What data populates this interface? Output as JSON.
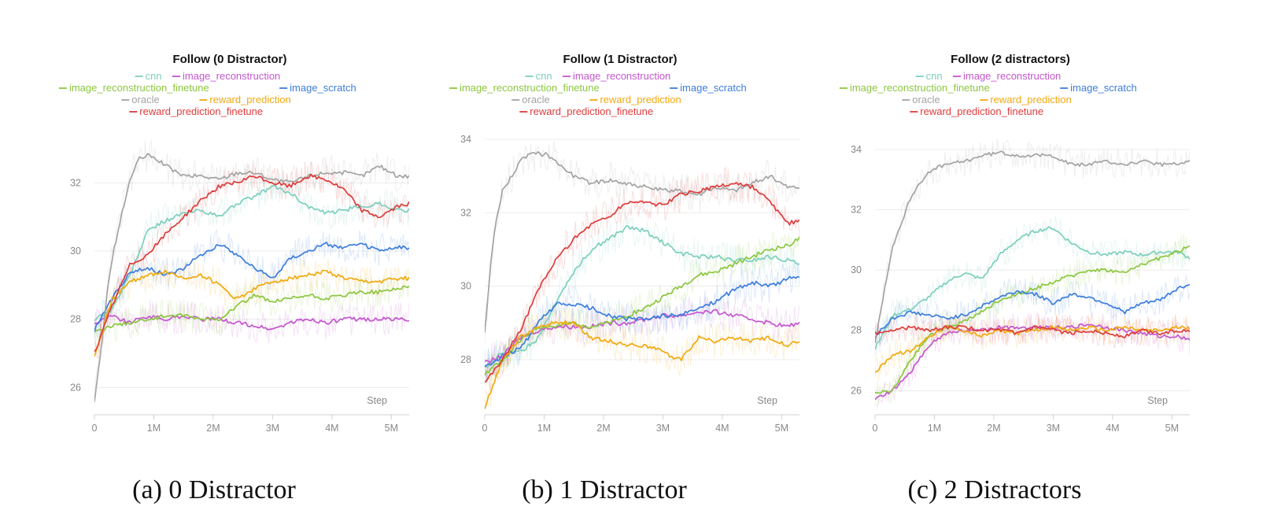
{
  "colors": {
    "cnn": "#7ccfbd",
    "image_reconstruction": "#c456cf",
    "image_reconstruction_finetune": "#8cc63f",
    "image_scratch": "#3d7ddc",
    "oracle": "#a3a3a3",
    "reward_prediction": "#f0a90f",
    "reward_prediction_finetune": "#dd3b3b"
  },
  "chart_data": [
    {
      "type": "line",
      "title": "Follow (0 Distractor)",
      "caption": "(a) 0 Distractor",
      "xlabel": "Step",
      "ylabel": "",
      "xlim": [
        0,
        5.3
      ],
      "ylim": [
        25.2,
        33.6
      ],
      "yticks": [
        26,
        28,
        30,
        32
      ],
      "xticks": [
        0,
        1,
        2,
        3,
        4,
        5
      ],
      "xtick_labels": [
        "0",
        "1M",
        "2M",
        "3M",
        "4M",
        "5M"
      ],
      "series": [
        {
          "name": "cnn",
          "key": "cnn",
          "x": [
            0,
            0.3,
            0.6,
            0.9,
            1.2,
            1.5,
            1.8,
            2.1,
            2.4,
            2.7,
            3.0,
            3.3,
            3.6,
            3.9,
            4.2,
            4.5,
            4.8,
            5.1,
            5.3
          ],
          "y": [
            28.0,
            28.3,
            29.3,
            30.6,
            30.9,
            31.1,
            31.2,
            31.0,
            31.4,
            31.6,
            31.9,
            31.7,
            31.3,
            31.1,
            31.2,
            31.3,
            31.4,
            31.2,
            31.2
          ]
        },
        {
          "name": "image_reconstruction",
          "key": "image_reconstruction",
          "x": [
            0,
            0.3,
            0.6,
            0.9,
            1.2,
            1.5,
            1.8,
            2.1,
            2.4,
            2.7,
            3.0,
            3.3,
            3.6,
            3.9,
            4.2,
            4.5,
            4.8,
            5.1,
            5.3
          ],
          "y": [
            27.9,
            28.1,
            27.9,
            28.1,
            28.0,
            28.1,
            28.0,
            28.0,
            27.9,
            27.8,
            27.7,
            27.9,
            28.0,
            27.9,
            28.0,
            28.0,
            28.0,
            28.0,
            28.0
          ]
        },
        {
          "name": "image_reconstruction_finetune",
          "key": "image_reconstruction_finetune",
          "x": [
            0,
            0.3,
            0.6,
            0.9,
            1.2,
            1.5,
            1.8,
            2.1,
            2.4,
            2.7,
            3.0,
            3.3,
            3.6,
            3.9,
            4.2,
            4.5,
            4.8,
            5.1,
            5.3
          ],
          "y": [
            27.6,
            27.8,
            27.9,
            28.0,
            28.1,
            28.1,
            28.0,
            28.0,
            28.4,
            28.7,
            28.5,
            28.6,
            28.7,
            28.6,
            28.7,
            28.8,
            28.8,
            28.9,
            29.0
          ]
        },
        {
          "name": "image_scratch",
          "key": "image_scratch",
          "x": [
            0,
            0.3,
            0.6,
            0.9,
            1.2,
            1.5,
            1.8,
            2.1,
            2.4,
            2.7,
            3.0,
            3.3,
            3.6,
            3.9,
            4.2,
            4.5,
            4.8,
            5.1,
            5.3
          ],
          "y": [
            27.7,
            28.6,
            29.4,
            29.5,
            29.3,
            29.5,
            29.9,
            30.2,
            29.9,
            29.5,
            29.2,
            29.8,
            30.0,
            30.2,
            30.1,
            30.2,
            30.0,
            30.1,
            30.1
          ]
        },
        {
          "name": "oracle",
          "key": "oracle",
          "x": [
            0,
            0.1,
            0.2,
            0.3,
            0.45,
            0.6,
            0.75,
            0.9,
            1.05,
            1.2,
            1.5,
            1.8,
            2.1,
            2.4,
            2.7,
            3.0,
            3.3,
            3.6,
            3.9,
            4.2,
            4.5,
            4.8,
            5.1,
            5.3
          ],
          "y": [
            25.6,
            26.9,
            28.6,
            29.8,
            31.0,
            32.1,
            32.7,
            32.8,
            32.7,
            32.5,
            32.2,
            32.2,
            32.1,
            32.3,
            32.3,
            32.1,
            32.0,
            32.2,
            32.3,
            32.3,
            32.2,
            32.5,
            32.2,
            32.2
          ]
        },
        {
          "name": "reward_prediction",
          "key": "reward_prediction",
          "x": [
            0,
            0.3,
            0.6,
            0.9,
            1.2,
            1.5,
            1.8,
            2.1,
            2.4,
            2.7,
            3.0,
            3.3,
            3.6,
            3.9,
            4.2,
            4.5,
            4.8,
            5.1,
            5.3
          ],
          "y": [
            26.9,
            28.6,
            29.1,
            29.3,
            29.4,
            29.2,
            29.3,
            29.0,
            28.6,
            28.9,
            29.1,
            29.2,
            29.3,
            29.4,
            29.2,
            29.1,
            29.1,
            29.2,
            29.2
          ]
        },
        {
          "name": "reward_prediction_finetune",
          "key": "reward_prediction_finetune",
          "x": [
            0,
            0.3,
            0.6,
            0.9,
            1.2,
            1.5,
            1.8,
            2.1,
            2.4,
            2.7,
            3.0,
            3.3,
            3.6,
            3.9,
            4.2,
            4.5,
            4.8,
            5.1,
            5.3
          ],
          "y": [
            27.0,
            28.4,
            29.6,
            29.9,
            30.5,
            31.0,
            31.5,
            31.9,
            32.0,
            32.2,
            32.0,
            31.9,
            32.2,
            32.1,
            31.8,
            31.2,
            31.0,
            31.3,
            31.4
          ]
        }
      ]
    },
    {
      "type": "line",
      "title": "Follow (1 Distractor)",
      "caption": "(b) 1 Distractor",
      "xlabel": "Step",
      "ylabel": "",
      "xlim": [
        0,
        5.3
      ],
      "ylim": [
        26.5,
        34.3
      ],
      "yticks": [
        28,
        30,
        32,
        34
      ],
      "xticks": [
        0,
        1,
        2,
        3,
        4,
        5
      ],
      "xtick_labels": [
        "0",
        "1M",
        "2M",
        "3M",
        "4M",
        "5M"
      ],
      "series": [
        {
          "name": "cnn",
          "key": "cnn",
          "x": [
            0,
            0.3,
            0.6,
            0.9,
            1.2,
            1.5,
            1.8,
            2.1,
            2.4,
            2.7,
            3.0,
            3.3,
            3.6,
            3.9,
            4.2,
            4.5,
            4.8,
            5.1,
            5.3
          ],
          "y": [
            27.8,
            28.2,
            28.2,
            28.6,
            29.6,
            30.4,
            31.0,
            31.3,
            31.6,
            31.5,
            31.2,
            30.9,
            30.8,
            30.8,
            30.7,
            30.7,
            30.8,
            30.7,
            30.6
          ]
        },
        {
          "name": "image_reconstruction",
          "key": "image_reconstruction",
          "x": [
            0,
            0.3,
            0.6,
            0.9,
            1.2,
            1.5,
            1.8,
            2.1,
            2.4,
            2.7,
            3.0,
            3.3,
            3.6,
            3.9,
            4.2,
            4.5,
            4.8,
            5.1,
            5.3
          ],
          "y": [
            27.9,
            28.1,
            28.6,
            28.8,
            28.9,
            28.9,
            28.9,
            29.0,
            29.0,
            29.1,
            29.2,
            29.2,
            29.3,
            29.3,
            29.2,
            29.1,
            29.0,
            28.9,
            29.0
          ]
        },
        {
          "name": "image_reconstruction_finetune",
          "key": "image_reconstruction_finetune",
          "x": [
            0,
            0.3,
            0.6,
            0.9,
            1.2,
            1.5,
            1.8,
            2.1,
            2.4,
            2.7,
            3.0,
            3.3,
            3.6,
            3.9,
            4.2,
            4.5,
            4.8,
            5.1,
            5.3
          ],
          "y": [
            27.6,
            28.0,
            28.5,
            28.9,
            28.9,
            29.0,
            28.9,
            29.0,
            29.2,
            29.4,
            29.7,
            30.0,
            30.3,
            30.4,
            30.6,
            30.8,
            31.0,
            31.1,
            31.3
          ]
        },
        {
          "name": "image_scratch",
          "key": "image_scratch",
          "x": [
            0,
            0.3,
            0.6,
            0.9,
            1.2,
            1.5,
            1.8,
            2.1,
            2.4,
            2.7,
            3.0,
            3.3,
            3.6,
            3.9,
            4.2,
            4.5,
            4.8,
            5.1,
            5.3
          ],
          "y": [
            27.8,
            28.1,
            28.3,
            29.0,
            29.5,
            29.5,
            29.4,
            29.2,
            29.1,
            29.1,
            29.2,
            29.2,
            29.4,
            29.6,
            29.9,
            30.1,
            30.0,
            30.2,
            30.3
          ]
        },
        {
          "name": "oracle",
          "key": "oracle",
          "x": [
            0,
            0.1,
            0.2,
            0.3,
            0.45,
            0.6,
            0.75,
            0.9,
            1.05,
            1.2,
            1.5,
            1.8,
            2.1,
            2.4,
            2.7,
            3.0,
            3.3,
            3.6,
            3.9,
            4.2,
            4.5,
            4.8,
            5.1,
            5.3
          ],
          "y": [
            28.7,
            30.6,
            31.9,
            32.6,
            33.0,
            33.4,
            33.6,
            33.6,
            33.6,
            33.4,
            33.0,
            32.8,
            32.9,
            32.8,
            32.7,
            32.6,
            32.6,
            32.5,
            32.7,
            32.6,
            32.8,
            33.0,
            32.7,
            32.7
          ]
        },
        {
          "name": "reward_prediction",
          "key": "reward_prediction",
          "x": [
            0,
            0.3,
            0.6,
            0.9,
            1.2,
            1.5,
            1.8,
            2.1,
            2.4,
            2.7,
            3.0,
            3.3,
            3.6,
            3.9,
            4.2,
            4.5,
            4.8,
            5.1,
            5.3
          ],
          "y": [
            26.7,
            28.0,
            28.6,
            28.9,
            29.0,
            29.0,
            28.6,
            28.5,
            28.4,
            28.4,
            28.2,
            28.0,
            28.6,
            28.5,
            28.6,
            28.5,
            28.6,
            28.4,
            28.5
          ]
        },
        {
          "name": "reward_prediction_finetune",
          "key": "reward_prediction_finetune",
          "x": [
            0,
            0.3,
            0.6,
            0.9,
            1.2,
            1.5,
            1.8,
            2.1,
            2.4,
            2.7,
            3.0,
            3.3,
            3.6,
            3.9,
            4.2,
            4.5,
            4.8,
            5.1,
            5.3
          ],
          "y": [
            27.4,
            28.0,
            28.8,
            29.9,
            30.7,
            31.3,
            31.7,
            31.9,
            32.3,
            32.3,
            32.2,
            32.5,
            32.6,
            32.7,
            32.8,
            32.7,
            32.3,
            31.7,
            31.8
          ]
        }
      ]
    },
    {
      "type": "line",
      "title": "Follow (2 distractors)",
      "caption": "(c) 2 Distractors",
      "xlabel": "Step",
      "ylabel": "",
      "xlim": [
        0,
        5.3
      ],
      "ylim": [
        25.2,
        34.7
      ],
      "yticks": [
        26,
        28,
        30,
        32,
        34
      ],
      "xticks": [
        0,
        1,
        2,
        3,
        4,
        5
      ],
      "xtick_labels": [
        "0",
        "1M",
        "2M",
        "3M",
        "4M",
        "5M"
      ],
      "series": [
        {
          "name": "cnn",
          "key": "cnn",
          "x": [
            0,
            0.3,
            0.6,
            0.9,
            1.2,
            1.5,
            1.8,
            2.1,
            2.4,
            2.7,
            3.0,
            3.3,
            3.6,
            3.9,
            4.2,
            4.5,
            4.8,
            5.1,
            5.3
          ],
          "y": [
            27.4,
            28.5,
            28.7,
            29.1,
            29.6,
            29.9,
            29.7,
            30.5,
            31.0,
            31.3,
            31.4,
            30.9,
            30.6,
            30.5,
            30.6,
            30.5,
            30.6,
            30.6,
            30.4
          ]
        },
        {
          "name": "image_reconstruction",
          "key": "image_reconstruction",
          "x": [
            0,
            0.3,
            0.6,
            0.9,
            1.2,
            1.5,
            1.8,
            2.1,
            2.4,
            2.7,
            3.0,
            3.3,
            3.6,
            3.9,
            4.2,
            4.5,
            4.8,
            5.1,
            5.3
          ],
          "y": [
            25.7,
            26.0,
            26.6,
            27.5,
            27.9,
            28.0,
            28.0,
            28.1,
            28.1,
            28.1,
            28.1,
            28.1,
            28.2,
            28.1,
            28.0,
            27.9,
            27.8,
            27.8,
            27.7
          ]
        },
        {
          "name": "image_reconstruction_finetune",
          "key": "image_reconstruction_finetune",
          "x": [
            0,
            0.3,
            0.6,
            0.9,
            1.2,
            1.5,
            1.8,
            2.1,
            2.4,
            2.7,
            3.0,
            3.3,
            3.6,
            3.9,
            4.2,
            4.5,
            4.8,
            5.1,
            5.3
          ],
          "y": [
            25.9,
            26.0,
            27.0,
            27.8,
            28.1,
            28.3,
            28.6,
            29.0,
            29.2,
            29.4,
            29.6,
            29.8,
            30.0,
            30.0,
            29.9,
            30.2,
            30.4,
            30.6,
            30.8
          ]
        },
        {
          "name": "image_scratch",
          "key": "image_scratch",
          "x": [
            0,
            0.3,
            0.6,
            0.9,
            1.2,
            1.5,
            1.8,
            2.1,
            2.4,
            2.7,
            3.0,
            3.3,
            3.6,
            3.9,
            4.2,
            4.5,
            4.8,
            5.1,
            5.3
          ],
          "y": [
            27.8,
            28.4,
            28.6,
            28.5,
            28.4,
            28.5,
            28.8,
            29.1,
            29.3,
            29.2,
            28.9,
            29.2,
            29.1,
            28.9,
            28.6,
            28.9,
            29.0,
            29.4,
            29.5
          ]
        },
        {
          "name": "oracle",
          "key": "oracle",
          "x": [
            0,
            0.1,
            0.2,
            0.3,
            0.45,
            0.6,
            0.75,
            0.9,
            1.05,
            1.2,
            1.5,
            1.8,
            2.1,
            2.4,
            2.7,
            3.0,
            3.3,
            3.6,
            3.9,
            4.2,
            4.5,
            4.8,
            5.1,
            5.3
          ],
          "y": [
            27.6,
            28.7,
            29.8,
            30.8,
            31.6,
            32.4,
            32.9,
            33.2,
            33.4,
            33.5,
            33.6,
            33.8,
            33.9,
            33.8,
            33.8,
            33.8,
            33.5,
            33.5,
            33.6,
            33.5,
            33.6,
            33.5,
            33.5,
            33.6
          ]
        },
        {
          "name": "reward_prediction",
          "key": "reward_prediction",
          "x": [
            0,
            0.3,
            0.6,
            0.9,
            1.2,
            1.5,
            1.8,
            2.1,
            2.4,
            2.7,
            3.0,
            3.3,
            3.6,
            3.9,
            4.2,
            4.5,
            4.8,
            5.1,
            5.3
          ],
          "y": [
            26.6,
            27.2,
            27.3,
            27.8,
            28.1,
            28.0,
            27.8,
            28.0,
            27.9,
            28.0,
            28.1,
            28.0,
            28.1,
            28.0,
            28.1,
            28.0,
            28.0,
            28.1,
            28.1
          ]
        },
        {
          "name": "reward_prediction_finetune",
          "key": "reward_prediction_finetune",
          "x": [
            0,
            0.3,
            0.6,
            0.9,
            1.2,
            1.5,
            1.8,
            2.1,
            2.4,
            2.7,
            3.0,
            3.3,
            3.6,
            3.9,
            4.2,
            4.5,
            4.8,
            5.1,
            5.3
          ],
          "y": [
            27.9,
            28.0,
            28.1,
            28.0,
            28.1,
            28.1,
            28.0,
            28.0,
            27.9,
            28.1,
            28.0,
            27.9,
            28.0,
            27.9,
            27.8,
            28.0,
            27.9,
            28.0,
            28.0
          ]
        }
      ]
    }
  ]
}
